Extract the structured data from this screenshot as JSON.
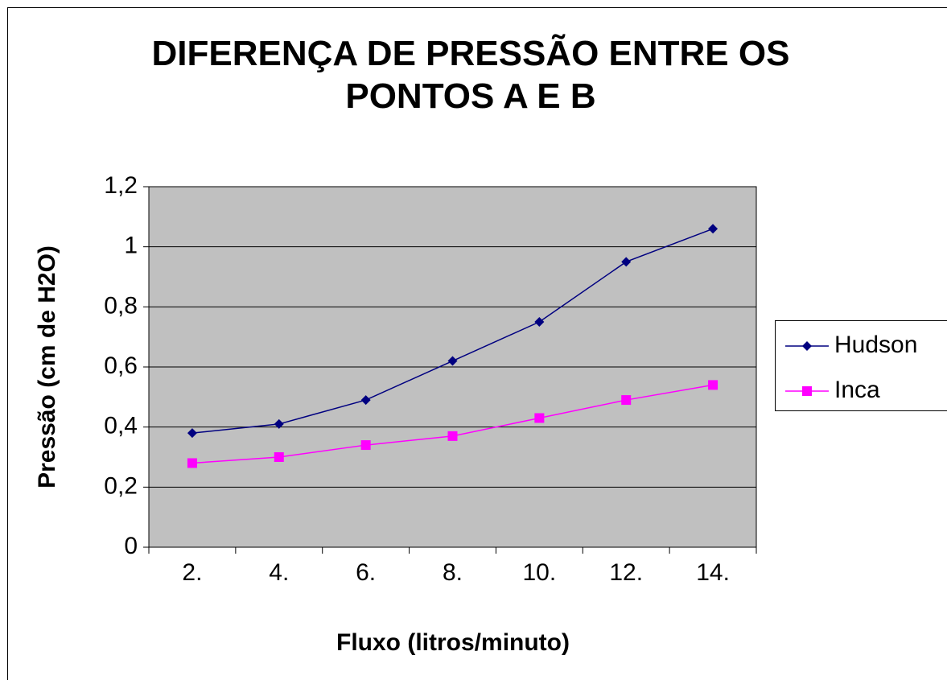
{
  "chart_data": {
    "type": "line",
    "title": "DIFERENÇA DE PRESSÃO ENTRE OS PONTOS A E B",
    "x_label": "Fluxo (litros/minuto)",
    "y_label": "Pressão (cm de H2O)",
    "categories": [
      "2.",
      "4.",
      "6.",
      "8.",
      "10.",
      "12.",
      "14."
    ],
    "series": [
      {
        "name": "Hudson",
        "color": "#000080",
        "marker": "diamond",
        "values": [
          0.38,
          0.41,
          0.49,
          0.62,
          0.75,
          0.95,
          1.06
        ]
      },
      {
        "name": "Inca",
        "color": "#ff00ff",
        "marker": "square",
        "values": [
          0.28,
          0.3,
          0.34,
          0.37,
          0.43,
          0.49,
          0.54
        ]
      }
    ],
    "ylim": [
      0,
      1.2
    ],
    "yticks": [
      0,
      {
        "value": 0.2,
        "label": "0,2"
      },
      {
        "value": 0.4,
        "label": "0,4"
      },
      {
        "value": 0.6,
        "label": "0,6"
      },
      {
        "value": 0.8,
        "label": "0,8"
      },
      1,
      {
        "value": 1.2,
        "label": "1,2"
      }
    ],
    "grid": true,
    "plot_background": "#c0c0c0",
    "legend": "right"
  }
}
